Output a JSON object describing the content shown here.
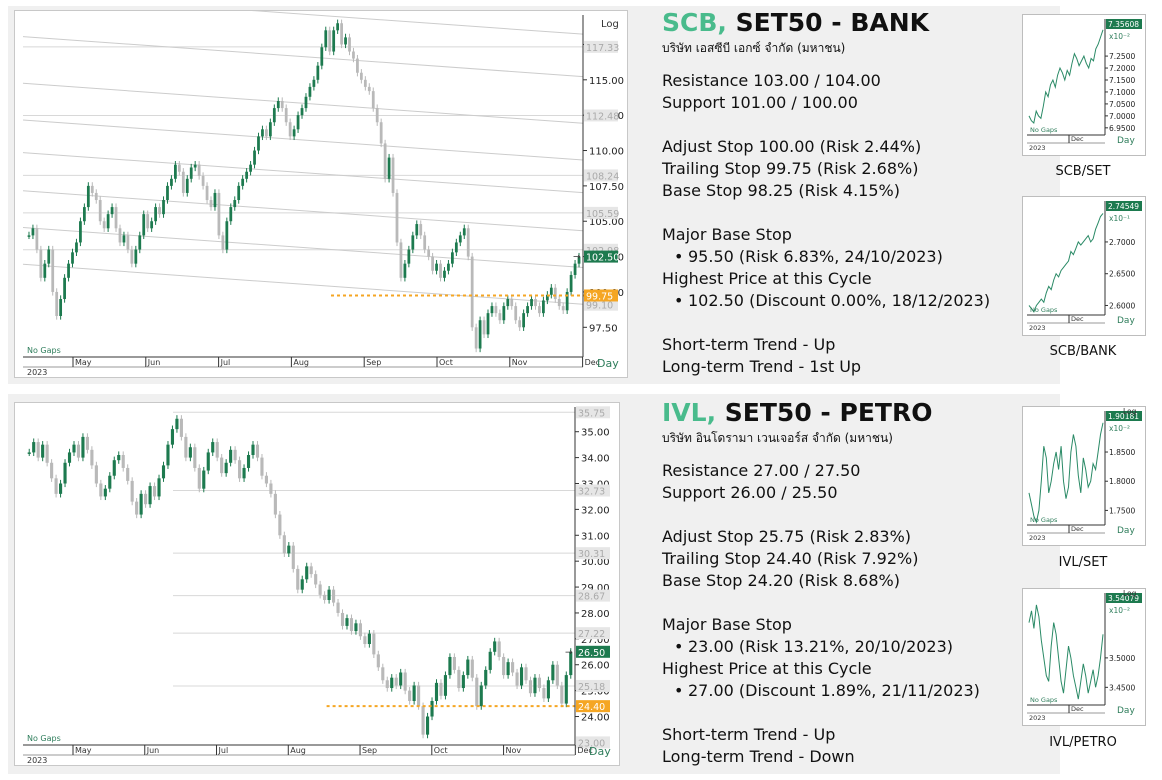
{
  "charts": [
    {
      "symbol": "SCB,",
      "index_sector": "SET50 - BANK",
      "company": "บริษัท เอสซีบี เอกซ์ จำกัด (มหาชน)",
      "resistance": "Resistance 103.00 / 104.00",
      "support": "Support 101.00 / 100.00",
      "adjust_stop": "Adjust Stop 100.00 (Risk 2.44%)",
      "trailing_stop": "Trailing Stop 99.75 (Risk 2.68%)",
      "base_stop": "Base Stop 98.25 (Risk 4.15%)",
      "major_base_stop_label": "Major Base Stop",
      "major_base_stop": "95.50 (Risk 6.83%, 24/10/2023)",
      "highest_label": "Highest Price at this Cycle",
      "highest": "102.50 (Discount 0.00%, 18/12/2023)",
      "short_trend": "Short-term Trend - Up",
      "long_trend": "Long-term Trend - 1st Up",
      "chart_data": {
        "type": "candlestick",
        "scale_label": "Log",
        "footer_left": "No Gaps",
        "year_label": "2023",
        "period_label": "Day",
        "months": [
          "May",
          "Jun",
          "Jul",
          "Aug",
          "Sep",
          "Oct",
          "Nov",
          "Dec"
        ],
        "ylim": [
          95.4,
          119.3
        ],
        "yticks": [
          97.5,
          100.0,
          102.5,
          105.0,
          107.5,
          110.0,
          112.5,
          115.0,
          117.5
        ],
        "ytick_labels": [
          "97.50",
          "100.00",
          "102.50",
          "105.00",
          "107.50",
          "110.00",
          "112.50",
          "115.00",
          "117.5"
        ],
        "last_price": "102.50",
        "stop_level": 99.75,
        "stop_label": "99.75",
        "base_level": 99.1,
        "base_label": "99.10",
        "channel_labels": [
          "117.33",
          "112.48",
          "108.24",
          "105.59",
          "102.98"
        ],
        "channel_values": [
          117.33,
          112.48,
          108.24,
          105.59,
          102.98
        ],
        "closes": [
          104,
          104.5,
          103,
          101,
          102,
          103,
          100,
          98.3,
          99.5,
          101,
          102,
          102.8,
          103.5,
          105,
          106,
          107.5,
          107,
          106.5,
          105,
          104.5,
          105.5,
          106,
          104.5,
          103.5,
          104,
          103,
          102,
          103,
          104,
          105.5,
          104.5,
          105,
          106,
          105.5,
          106.5,
          107.5,
          108,
          109,
          108.5,
          107,
          108,
          108.8,
          109,
          108.2,
          107.5,
          106.5,
          106,
          107,
          104,
          103,
          105,
          106,
          106.5,
          107.5,
          108,
          108.5,
          109,
          110,
          111,
          111.5,
          111,
          112,
          113,
          113.5,
          113,
          112,
          111,
          111.5,
          112.5,
          113,
          113.8,
          114.5,
          115,
          116,
          117.3,
          118.5,
          117,
          118.5,
          119,
          117.5,
          118,
          117,
          116.5,
          115.5,
          115,
          114.5,
          114.2,
          113,
          112,
          110.5,
          108,
          109.5,
          107,
          103.5,
          101,
          102,
          103,
          104,
          104.8,
          104,
          103,
          102.5,
          101.5,
          102,
          101,
          101.5,
          102,
          102.8,
          103.5,
          104,
          104.5,
          102.5,
          97.5,
          96,
          98,
          97,
          98.5,
          99,
          98.5,
          98,
          99,
          99.5,
          99,
          98,
          97.5,
          98.5,
          99,
          99.5,
          99,
          98.5,
          99.4,
          99.8,
          100.3,
          99.5,
          99,
          98.7,
          100,
          101.2,
          102,
          102.5
        ]
      }
    },
    {
      "symbol": "IVL,",
      "index_sector": "SET50 - PETRO",
      "company": "บริษัท อินโดรามา เวนเจอร์ส จำกัด (มหาชน)",
      "resistance": "Resistance 27.00 / 27.50",
      "support": "Support 26.00 / 25.50",
      "adjust_stop": "Adjust Stop 25.75 (Risk 2.83%)",
      "trailing_stop": "Trailing Stop 24.40 (Risk 7.92%)",
      "base_stop": "Base Stop 24.20 (Risk 8.68%)",
      "major_base_stop_label": "Major Base Stop",
      "major_base_stop": "23.00 (Risk 13.21%, 20/10/2023)",
      "highest_label": "Highest Price at this Cycle",
      "highest": "27.00 (Discount 1.89%, 21/11/2023)",
      "short_trend": "Short-term Trend - Up",
      "long_trend": "Long-term Trend - Down",
      "chart_data": {
        "type": "candlestick",
        "scale_label": "",
        "footer_left": "No Gaps",
        "year_label": "2023",
        "period_label": "Day",
        "months": [
          "May",
          "Jun",
          "Jul",
          "Aug",
          "Sep",
          "Oct",
          "Nov",
          "Dec"
        ],
        "ylim": [
          22.9,
          35.8
        ],
        "yticks": [
          24.0,
          25.0,
          26.0,
          27.0,
          28.0,
          29.0,
          30.0,
          31.0,
          32.0,
          33.0,
          34.0,
          35.0
        ],
        "ytick_labels": [
          "24.00",
          "25.00",
          "26.00",
          "27.00",
          "28.00",
          "29.00",
          "30.00",
          "31.00",
          "32.00",
          "33.00",
          "34.00",
          "35.00"
        ],
        "last_price": "26.50",
        "stop_level": 24.4,
        "stop_label": "24.40",
        "base_level": 23.0,
        "base_label": "23.00",
        "channel_labels": [
          "35.75",
          "32.73",
          "30.31",
          "28.67",
          "27.22",
          "25.18"
        ],
        "channel_values": [
          35.75,
          32.73,
          30.31,
          28.67,
          27.22,
          25.18
        ],
        "closes": [
          34.2,
          34.6,
          34.0,
          34.5,
          33.8,
          33.2,
          32.6,
          33.0,
          33.8,
          34.2,
          34.5,
          34.0,
          34.8,
          34.3,
          33.7,
          33.0,
          32.5,
          32.8,
          33.3,
          33.9,
          34.1,
          33.6,
          33.1,
          32.3,
          31.8,
          32.6,
          32.2,
          32.9,
          32.5,
          33.2,
          33.7,
          34.5,
          35.1,
          35.5,
          34.8,
          34.0,
          34.4,
          33.6,
          32.8,
          33.5,
          34.2,
          34.6,
          34.0,
          33.4,
          33.8,
          34.3,
          33.9,
          33.2,
          33.6,
          34.1,
          34.5,
          34.0,
          33.3,
          33.0,
          32.6,
          31.8,
          31.0,
          30.3,
          30.6,
          29.7,
          28.9,
          29.3,
          29.8,
          29.5,
          29.1,
          28.7,
          28.5,
          28.9,
          28.4,
          28.0,
          27.5,
          27.8,
          27.3,
          27.6,
          27.1,
          26.8,
          27.2,
          26.4,
          25.9,
          25.4,
          25.1,
          25.5,
          25.2,
          25.7,
          25.0,
          24.6,
          25.2,
          24.4,
          23.3,
          24.0,
          24.6,
          25.3,
          24.8,
          25.6,
          26.3,
          25.8,
          25.1,
          25.6,
          26.2,
          25.5,
          24.4,
          25.2,
          25.8,
          26.5,
          26.9,
          26.3,
          25.6,
          26.1,
          25.7,
          25.2,
          25.9,
          25.4,
          24.9,
          25.5,
          25.1,
          24.7,
          25.4,
          26.0,
          25.2,
          24.5,
          25.6,
          26.5
        ]
      }
    }
  ],
  "mini_charts": [
    {
      "caption": "SCB/SET",
      "value_label": "7.35608",
      "multiplier": "x10⁻²",
      "scale_label": "",
      "yticks": [
        6.95,
        7.0,
        7.05,
        7.1,
        7.15,
        7.2,
        7.25
      ],
      "ytick_labels": [
        "6.9500",
        "7.0000",
        "7.0500",
        "7.1000",
        "7.1500",
        "7.2000",
        "7.2500"
      ],
      "ylim": [
        6.92,
        7.38
      ],
      "footer_left": "No Gaps",
      "month_label": "Dec",
      "year_label": "2023",
      "period_label": "Day",
      "values": [
        7.0,
        6.98,
        6.97,
        7.02,
        7.0,
        6.99,
        7.04,
        7.1,
        7.08,
        7.13,
        7.15,
        7.12,
        7.17,
        7.2,
        7.18,
        7.15,
        7.19,
        7.17,
        7.22,
        7.26,
        7.24,
        7.21,
        7.23,
        7.25,
        7.22,
        7.2,
        7.24,
        7.23,
        7.28,
        7.3,
        7.33,
        7.36
      ]
    },
    {
      "caption": "SCB/BANK",
      "value_label": "2.74549",
      "multiplier": "x10⁻¹",
      "scale_label": "",
      "yticks": [
        2.6,
        2.65,
        2.7
      ],
      "ytick_labels": [
        "2.6000",
        "2.6500",
        "2.7000"
      ],
      "ylim": [
        2.585,
        2.755
      ],
      "footer_left": "No Gaps",
      "month_label": "Dec",
      "year_label": "2023",
      "period_label": "Day",
      "values": [
        2.6,
        2.595,
        2.59,
        2.6,
        2.605,
        2.61,
        2.605,
        2.62,
        2.63,
        2.625,
        2.64,
        2.65,
        2.645,
        2.655,
        2.66,
        2.665,
        2.67,
        2.685,
        2.68,
        2.69,
        2.7,
        2.695,
        2.7,
        2.705,
        2.71,
        2.7,
        2.705,
        2.72,
        2.73,
        2.74,
        2.745
      ]
    },
    {
      "caption": "IVL/SET",
      "value_label": "1.90181",
      "multiplier": "x10⁻²",
      "scale_label": "Log",
      "yticks": [
        1.75,
        1.8,
        1.85
      ],
      "ytick_labels": [
        "1.7500",
        "1.8000",
        "1.8500"
      ],
      "ylim": [
        1.725,
        1.91
      ],
      "footer_left": "No Gaps",
      "month_label": "Dec",
      "year_label": "2023",
      "period_label": "Day",
      "values": [
        1.78,
        1.76,
        1.74,
        1.73,
        1.75,
        1.8,
        1.86,
        1.84,
        1.78,
        1.8,
        1.83,
        1.85,
        1.82,
        1.86,
        1.8,
        1.77,
        1.79,
        1.85,
        1.88,
        1.86,
        1.81,
        1.78,
        1.84,
        1.82,
        1.79,
        1.8,
        1.83,
        1.82,
        1.85,
        1.88,
        1.9
      ]
    },
    {
      "caption": "IVL/PETRO",
      "value_label": "3.54079",
      "multiplier": "x10⁻²",
      "scale_label": "Log",
      "yticks": [
        3.45,
        3.5
      ],
      "ytick_labels": [
        "3.4500",
        "3.5000"
      ],
      "ylim": [
        3.42,
        3.6
      ],
      "footer_left": "No Gaps",
      "month_label": "Dec",
      "year_label": "2023",
      "period_label": "Day",
      "values": [
        3.56,
        3.58,
        3.55,
        3.59,
        3.57,
        3.53,
        3.5,
        3.47,
        3.46,
        3.52,
        3.56,
        3.54,
        3.5,
        3.46,
        3.44,
        3.48,
        3.52,
        3.5,
        3.47,
        3.45,
        3.43,
        3.46,
        3.49,
        3.47,
        3.44,
        3.46,
        3.48,
        3.45,
        3.47,
        3.5,
        3.54
      ]
    }
  ]
}
